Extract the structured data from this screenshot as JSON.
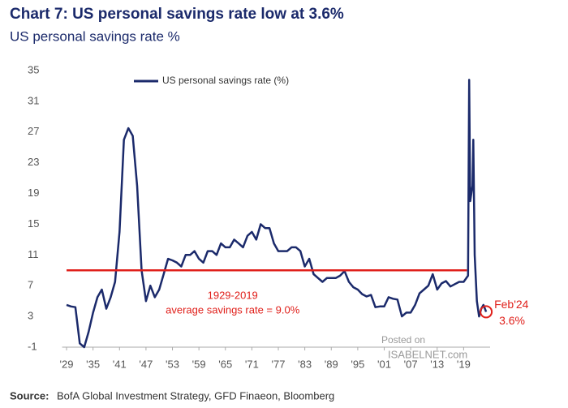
{
  "chart_data": {
    "type": "line",
    "title": "Chart 7: US personal savings rate low at 3.6%",
    "subtitle": "US personal savings rate %",
    "x": [
      1929,
      1930,
      1931,
      1932,
      1933,
      1934,
      1935,
      1936,
      1937,
      1938,
      1939,
      1940,
      1941,
      1942,
      1943,
      1944,
      1945,
      1946,
      1947,
      1948,
      1949,
      1950,
      1951,
      1952,
      1953,
      1954,
      1955,
      1956,
      1957,
      1958,
      1959,
      1960,
      1961,
      1962,
      1963,
      1964,
      1965,
      1966,
      1967,
      1968,
      1969,
      1970,
      1971,
      1972,
      1973,
      1974,
      1975,
      1976,
      1977,
      1978,
      1979,
      1980,
      1981,
      1982,
      1983,
      1984,
      1985,
      1986,
      1987,
      1988,
      1989,
      1990,
      1991,
      1992,
      1993,
      1994,
      1995,
      1996,
      1997,
      1998,
      1999,
      2000,
      2001,
      2002,
      2003,
      2004,
      2005,
      2006,
      2007,
      2008,
      2009,
      2010,
      2011,
      2012,
      2013,
      2014,
      2015,
      2016,
      2017,
      2018,
      2019,
      2020,
      2020.25,
      2020.5,
      2021,
      2021.2,
      2021.5,
      2022,
      2022.5,
      2023,
      2023.5,
      2024.1
    ],
    "series": [
      {
        "name": "US personal savings rate (%)",
        "color": "#1b2a6b",
        "values": [
          4.5,
          4.3,
          4.2,
          -0.5,
          -1.0,
          1.0,
          3.5,
          5.5,
          6.5,
          4.0,
          5.5,
          7.5,
          14,
          26,
          27.5,
          26.5,
          20,
          9.0,
          5,
          7,
          5.5,
          6.5,
          8.5,
          10.5,
          10.3,
          10,
          9.5,
          11,
          11,
          11.5,
          10.5,
          10,
          11.5,
          11.5,
          11,
          12.5,
          12,
          12,
          13,
          12.5,
          12,
          13.5,
          14,
          13,
          15,
          14.5,
          14.5,
          12.5,
          11.5,
          11.5,
          11.5,
          12,
          12,
          11.5,
          9.5,
          10.5,
          8.5,
          8,
          7.5,
          8,
          8,
          8,
          8.3,
          8.9,
          7.5,
          6.8,
          6.5,
          5.9,
          5.6,
          5.8,
          4.2,
          4.3,
          4.3,
          5.5,
          5.3,
          5.2,
          3,
          3.5,
          3.5,
          4.5,
          6,
          6.5,
          7,
          8.5,
          6.5,
          7.3,
          7.6,
          6.9,
          7.2,
          7.5,
          7.5,
          8.3,
          33.8,
          18,
          20,
          26,
          11,
          5,
          3,
          4,
          4.5,
          3.6
        ]
      }
    ],
    "xlim": [
      1928,
      2025
    ],
    "xticks": [
      {
        "value": 1929,
        "label": "'29"
      },
      {
        "value": 1935,
        "label": "'35"
      },
      {
        "value": 1941,
        "label": "'41"
      },
      {
        "value": 1947,
        "label": "'47"
      },
      {
        "value": 1953,
        "label": "'53"
      },
      {
        "value": 1959,
        "label": "'59"
      },
      {
        "value": 1965,
        "label": "'65"
      },
      {
        "value": 1971,
        "label": "'71"
      },
      {
        "value": 1977,
        "label": "'77"
      },
      {
        "value": 1983,
        "label": "'83"
      },
      {
        "value": 1989,
        "label": "'89"
      },
      {
        "value": 1995,
        "label": "'95"
      },
      {
        "value": 2001,
        "label": "'01"
      },
      {
        "value": 2007,
        "label": "'07"
      },
      {
        "value": 2013,
        "label": "'13"
      },
      {
        "value": 2019,
        "label": "'19"
      }
    ],
    "ylim": [
      -1,
      35
    ],
    "yticks": [
      -1,
      3,
      7,
      11,
      15,
      19,
      23,
      27,
      31,
      35
    ],
    "reference_line": {
      "value": 9.0,
      "xrange": [
        1929,
        2019
      ],
      "color": "#e0201b",
      "label": [
        "1929-2019",
        "average savings rate = 9.0%"
      ]
    },
    "end_annotation": {
      "label": [
        "Feb'24",
        "3.6%"
      ],
      "color": "#e0201b"
    },
    "watermark": [
      "Posted on",
      "ISABELNET.com"
    ],
    "source_label": "Source:",
    "source": "BofA Global Investment Strategy, GFD Finaeon, Bloomberg"
  }
}
